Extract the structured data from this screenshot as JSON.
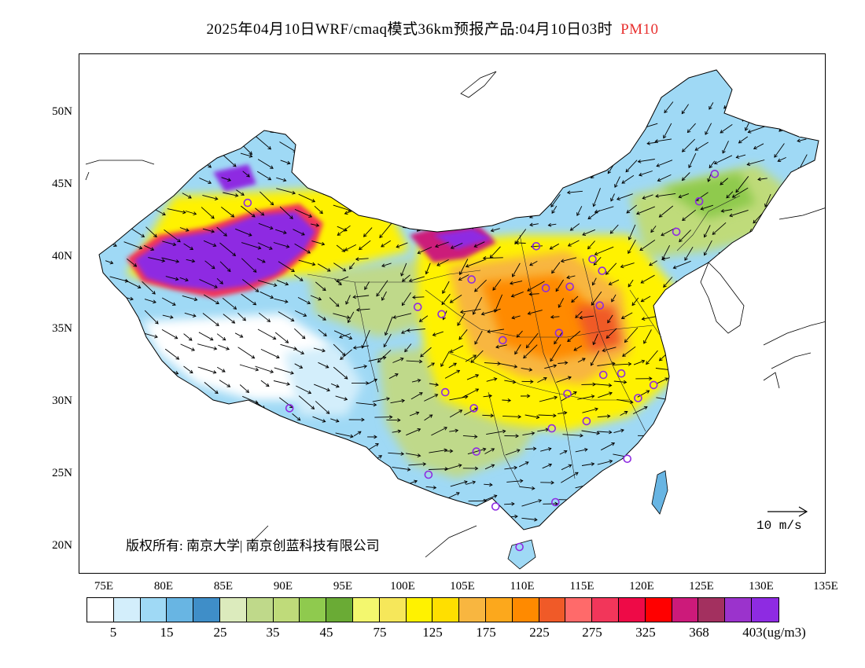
{
  "title": {
    "main": "2025年04月10日WRF/cmaq模式36km预报产品:04月10日03时",
    "pollutant": "PM10"
  },
  "axes": {
    "lat_labels": [
      "50N",
      "45N",
      "40N",
      "35N",
      "30N",
      "25N",
      "20N"
    ],
    "lon_labels": [
      "75E",
      "80E",
      "85E",
      "90E",
      "95E",
      "100E",
      "105E",
      "110E",
      "115E",
      "120E",
      "125E",
      "130E",
      "135E"
    ]
  },
  "copyright": "版权所有: 南京大学| 南京创蓝科技有限公司",
  "wind_scale_label": "10 m/s",
  "colorbar": {
    "colors": [
      "#ffffff",
      "#d3eefb",
      "#9fd9f5",
      "#68b5e3",
      "#3f8ec8",
      "#dcebbd",
      "#bfd98a",
      "#bfdb7a",
      "#8fca4e",
      "#6aab35",
      "#f3f76e",
      "#f6e75a",
      "#fff200",
      "#ffdf00",
      "#f8b640",
      "#fca81c",
      "#ff8a00",
      "#f05a28",
      "#ff6a6a",
      "#f2365a",
      "#ee0a47",
      "#ff0000",
      "#cc1a7a",
      "#a3305f",
      "#9b33cc",
      "#8e2be2"
    ],
    "labels": [
      "5",
      "15",
      "25",
      "35",
      "45",
      "75",
      "125",
      "175",
      "225",
      "275",
      "325",
      "368",
      "403"
    ],
    "unit": "(ug/m3)"
  },
  "stations": [
    [
      126.6,
      45.8
    ],
    [
      125.3,
      43.9
    ],
    [
      123.4,
      41.8
    ],
    [
      116.4,
      39.9
    ],
    [
      117.2,
      39.1
    ],
    [
      114.5,
      38.0
    ],
    [
      112.5,
      37.9
    ],
    [
      111.7,
      40.8
    ],
    [
      106.3,
      38.5
    ],
    [
      117.0,
      36.7
    ],
    [
      113.6,
      34.8
    ],
    [
      108.9,
      34.3
    ],
    [
      103.8,
      36.1
    ],
    [
      101.8,
      36.6
    ],
    [
      118.8,
      32.0
    ],
    [
      117.3,
      31.9
    ],
    [
      114.3,
      30.6
    ],
    [
      121.5,
      31.2
    ],
    [
      120.2,
      30.3
    ],
    [
      115.9,
      28.7
    ],
    [
      113.0,
      28.2
    ],
    [
      106.5,
      29.6
    ],
    [
      104.1,
      30.7
    ],
    [
      106.7,
      26.6
    ],
    [
      102.7,
      25.0
    ],
    [
      108.3,
      22.8
    ],
    [
      113.3,
      23.1
    ],
    [
      119.3,
      26.1
    ],
    [
      110.3,
      20.0
    ],
    [
      91.1,
      29.6
    ],
    [
      87.6,
      43.8
    ]
  ]
}
